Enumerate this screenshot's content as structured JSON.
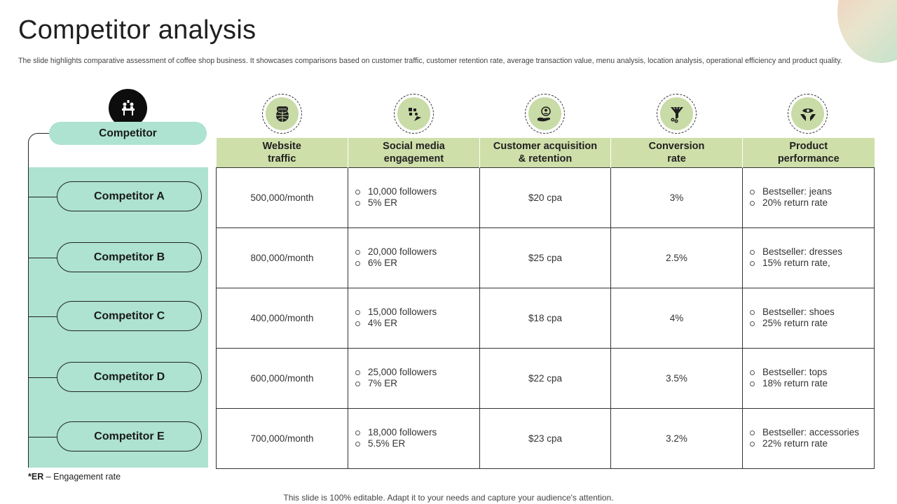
{
  "title": "Competitor analysis",
  "subtitle": "The slide highlights comparative assessment of coffee shop business. It showcases comparisons based on customer traffic, customer retention rate, average transaction value, menu analysis, location analysis, operational efficiency and product quality.",
  "competitor_header": "Competitor",
  "competitors": [
    "Competitor A",
    "Competitor B",
    "Competitor C",
    "Competitor D",
    "Competitor E"
  ],
  "columns": [
    {
      "line1": "Website",
      "line2": "traffic",
      "icon": "website-globe-icon"
    },
    {
      "line1": "Social media",
      "line2": "engagement",
      "icon": "social-media-icon"
    },
    {
      "line1": "Customer acquisition",
      "line2": "& retention",
      "icon": "customer-hand-icon"
    },
    {
      "line1": "Conversion",
      "line2": "rate",
      "icon": "funnel-icon"
    },
    {
      "line1": "Product",
      "line2": "performance",
      "icon": "product-eye-icon"
    }
  ],
  "rows": [
    {
      "traffic": "500,000/month",
      "social": [
        "10,000 followers",
        "5% ER"
      ],
      "cpa": "$20 cpa",
      "conversion": "3%",
      "product": [
        "Bestseller: jeans",
        "20% return rate"
      ]
    },
    {
      "traffic": "800,000/month",
      "social": [
        "20,000 followers",
        "6% ER"
      ],
      "cpa": "$25 cpa",
      "conversion": "2.5%",
      "product": [
        "Bestseller: dresses",
        "15% return rate,"
      ]
    },
    {
      "traffic": "400,000/month",
      "social": [
        "15,000 followers",
        "4% ER"
      ],
      "cpa": "$18 cpa",
      "conversion": "4%",
      "product": [
        "Bestseller: shoes",
        "25% return rate"
      ]
    },
    {
      "traffic": "600,000/month",
      "social": [
        "25,000 followers",
        "7% ER"
      ],
      "cpa": "$22 cpa",
      "conversion": "3.5%",
      "product": [
        "Bestseller: tops",
        "18% return rate"
      ]
    },
    {
      "traffic": "700,000/month",
      "social": [
        "18,000 followers",
        "5.5% ER"
      ],
      "cpa": "$23 cpa",
      "conversion": "3.2%",
      "product": [
        "Bestseller: accessories",
        "22% return rate"
      ]
    }
  ],
  "footnote": {
    "abbr": "*ER",
    "text": " – Engagement  rate"
  },
  "footer": "This slide is 100% editable. Adapt it to your needs and capture your audience's attention.",
  "colors": {
    "mint": "#ade3d0",
    "header_green": "#cfdfaa",
    "icon_green": "#c9dba6"
  }
}
